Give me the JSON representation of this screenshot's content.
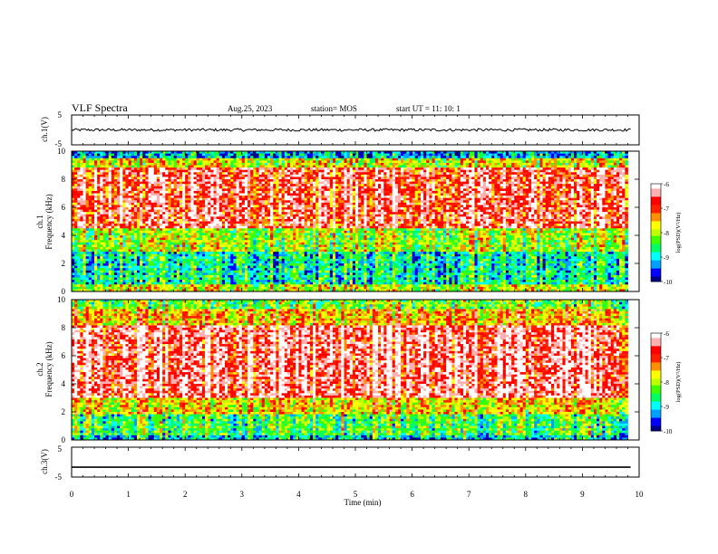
{
  "header": {
    "title": "VLF Spectra",
    "date": "Aug.25, 2023",
    "station": "station= MOS",
    "start": "start  UT =   11: 10: 1"
  },
  "chart_data": [
    {
      "type": "line",
      "name": "ch1-waveform",
      "ylabel": "ch.1(V)",
      "ylim": [
        -5,
        5
      ],
      "yticks": [
        "5",
        "-5"
      ],
      "xlim": [
        0,
        10
      ],
      "approx_level": 0,
      "noisy": true
    },
    {
      "type": "heatmap",
      "name": "ch1-spectrogram",
      "ylabel": "ch.1\nFrequency (kHz)",
      "ylabel_lines": [
        "ch.1",
        "Frequency (kHz)"
      ],
      "ylim": [
        0,
        10
      ],
      "yticks": [
        "0",
        "2",
        "4",
        "6",
        "8",
        "10"
      ],
      "xlim": [
        0,
        9.8
      ],
      "colorbar": {
        "label": "log(PSD)(V²/Hz)",
        "range": [
          -10,
          -6
        ],
        "ticks": [
          "-6",
          "-7",
          "-8",
          "-9",
          "-10"
        ]
      }
    },
    {
      "type": "heatmap",
      "name": "ch2-spectrogram",
      "ylabel_lines": [
        "ch.2",
        "Frequency (kHz)"
      ],
      "ylim": [
        0,
        10
      ],
      "yticks": [
        "0",
        "2",
        "4",
        "6",
        "8",
        "10"
      ],
      "xlim": [
        0,
        9.8
      ],
      "colorbar": {
        "label": "log(PSD)(V²/Hz)",
        "range": [
          -10,
          -6
        ],
        "ticks": [
          "-6",
          "-7",
          "-8",
          "-9",
          "-10"
        ]
      }
    },
    {
      "type": "line",
      "name": "ch3-waveform",
      "ylabel": "ch.3(V)",
      "ylim": [
        -5,
        5
      ],
      "yticks": [
        "5",
        "-5"
      ],
      "xlim": [
        0,
        10
      ],
      "approx_level": -1.7,
      "noisy": false
    }
  ],
  "xaxis": {
    "label": "Time  (min)",
    "ticks": [
      "0",
      "1",
      "2",
      "3",
      "4",
      "5",
      "6",
      "7",
      "8",
      "9",
      "10"
    ],
    "range": [
      0,
      10
    ]
  },
  "colors": {
    "colormap": [
      "#000080",
      "#0000ff",
      "#00a0ff",
      "#00ffff",
      "#00ff60",
      "#40ff00",
      "#c0ff00",
      "#ffff00",
      "#ff9000",
      "#ff2000",
      "#ff0000",
      "#ffb0b0",
      "#ffffff"
    ]
  }
}
